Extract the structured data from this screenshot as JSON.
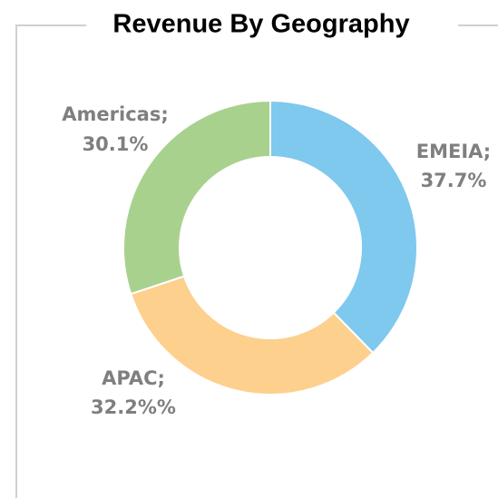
{
  "chart_data": {
    "type": "donut",
    "title": "Revenue By Geography",
    "categories": [
      "EMEIA;",
      "APAC;",
      "Americas;"
    ],
    "values": [
      37.7,
      32.2,
      30.1
    ],
    "value_labels": [
      "37.7%",
      "32.2%%",
      "30.1%"
    ],
    "colors": [
      "#7fc8ee",
      "#fdd08e",
      "#a9d18e"
    ]
  }
}
